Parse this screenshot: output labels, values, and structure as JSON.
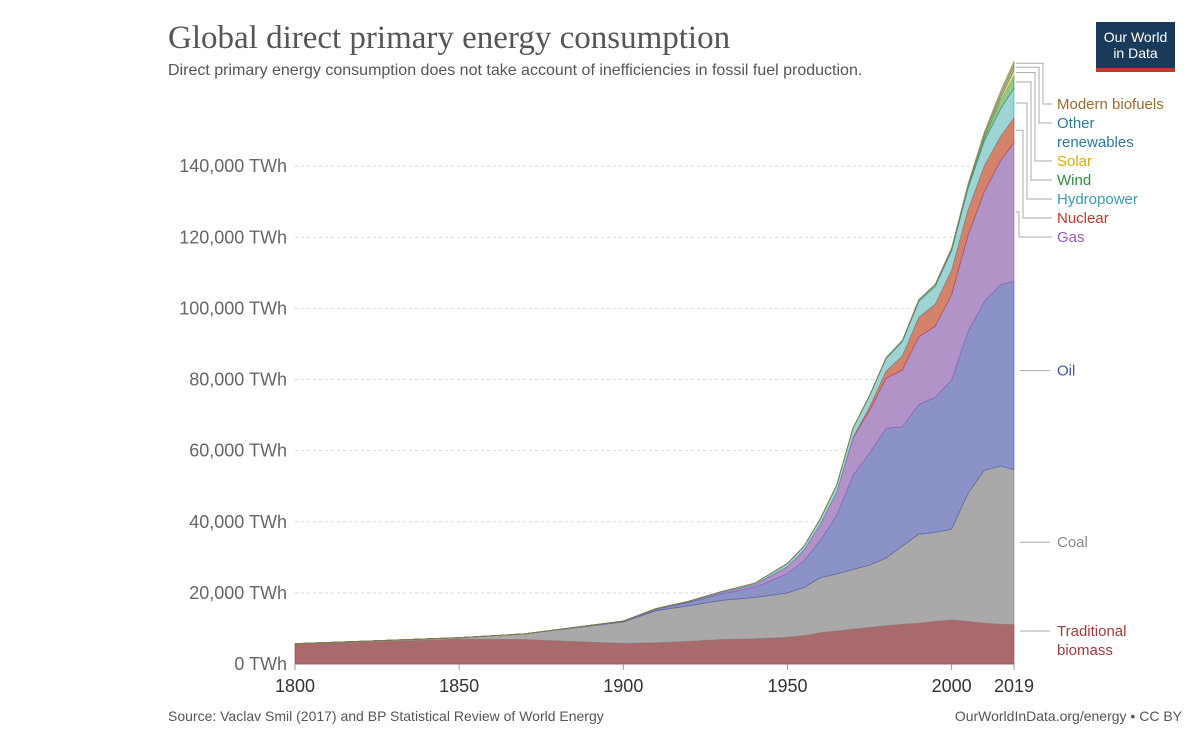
{
  "header": {
    "title": "Global direct primary energy consumption",
    "subtitle": "Direct primary energy consumption does not take account of inefficiencies in fossil fuel production.",
    "logo_line1": "Our World",
    "logo_line2": "in Data"
  },
  "footer": {
    "source": "Source: Vaclav Smil (2017) and BP Statistical Review of World Energy",
    "license": "OurWorldInData.org/energy • CC BY"
  },
  "chart_data": {
    "type": "area",
    "stacked": true,
    "x": [
      1800,
      1850,
      1870,
      1900,
      1910,
      1920,
      1930,
      1940,
      1950,
      1955,
      1960,
      1965,
      1970,
      1975,
      1980,
      1985,
      1990,
      1995,
      2000,
      2005,
      2010,
      2015,
      2019
    ],
    "ylim": [
      0,
      160000
    ],
    "yticks": [
      0,
      20000,
      40000,
      60000,
      80000,
      100000,
      120000,
      140000
    ],
    "ytick_labels": [
      "0 TWh",
      "20,000 TWh",
      "40,000 TWh",
      "60,000 TWh",
      "80,000 TWh",
      "100,000 TWh",
      "120,000 TWh",
      "140,000 TWh"
    ],
    "xticks": [
      1800,
      1850,
      1900,
      1950,
      2000,
      2019
    ],
    "xtick_labels": [
      "1800",
      "1850",
      "1900",
      "1950",
      "2000",
      "2019"
    ],
    "grid": true,
    "legend_position": "right",
    "series": [
      {
        "name": "Traditional biomass",
        "label": "Traditional\nbiomass",
        "color": "#9e3b3b",
        "fill": "#a86a6a",
        "values": [
          5600,
          7000,
          6900,
          5800,
          6000,
          6400,
          6900,
          7100,
          7500,
          8000,
          8800,
          9300,
          9800,
          10300,
          10800,
          11200,
          11500,
          12000,
          12400,
          12000,
          11500,
          11200,
          11100
        ]
      },
      {
        "name": "Coal",
        "color": "#888888",
        "fill": "#aaa8a8",
        "values": [
          100,
          400,
          1600,
          6000,
          9000,
          10000,
          11000,
          11600,
          12500,
          13500,
          15500,
          16000,
          16800,
          17500,
          19000,
          22000,
          25000,
          25000,
          25500,
          36000,
          43000,
          44500,
          43500
        ]
      },
      {
        "name": "Oil",
        "color": "#4356a8",
        "fill": "#8a92c8",
        "values": [
          0,
          0,
          0,
          200,
          400,
          900,
          1800,
          2900,
          5400,
          7500,
          10500,
          16500,
          26500,
          31500,
          36500,
          33500,
          36500,
          38000,
          42000,
          45500,
          47500,
          51000,
          53000
        ]
      },
      {
        "name": "Gas",
        "color": "#9b59b6",
        "fill": "#b293c8",
        "values": [
          0,
          0,
          0,
          50,
          100,
          200,
          400,
          700,
          2000,
          3000,
          4500,
          6500,
          10500,
          12000,
          14000,
          16000,
          19000,
          20000,
          24000,
          27000,
          31000,
          35000,
          39000
        ]
      },
      {
        "name": "Nuclear",
        "color": "#c0392b",
        "fill": "#d4826a",
        "values": [
          0,
          0,
          0,
          0,
          0,
          0,
          0,
          0,
          0,
          0,
          0,
          20,
          200,
          1000,
          2000,
          4000,
          5500,
          6200,
          6800,
          7200,
          7200,
          6800,
          7000
        ]
      },
      {
        "name": "Hydropower",
        "color": "#3a9ab0",
        "fill": "#9fd4d4",
        "values": [
          0,
          0,
          0,
          50,
          100,
          200,
          300,
          400,
          900,
          1100,
          1500,
          2000,
          2600,
          3100,
          3600,
          4000,
          4500,
          5000,
          5500,
          6000,
          7000,
          7800,
          8300
        ]
      },
      {
        "name": "Wind",
        "color": "#2e8b3e",
        "fill": "#8fc78f",
        "values": [
          0,
          0,
          0,
          0,
          0,
          0,
          0,
          0,
          0,
          0,
          0,
          0,
          0,
          0,
          0,
          0,
          10,
          20,
          80,
          250,
          850,
          2200,
          3500
        ]
      },
      {
        "name": "Solar",
        "color": "#d4b000",
        "fill": "#f0d98a",
        "values": [
          0,
          0,
          0,
          0,
          0,
          0,
          0,
          0,
          0,
          0,
          0,
          0,
          0,
          0,
          0,
          0,
          0,
          0,
          2,
          10,
          100,
          800,
          1800
        ]
      },
      {
        "name": "Other renewables",
        "label": "Other\nrenewables",
        "color": "#2a7a9a",
        "fill": "#9ec9c9",
        "values": [
          0,
          0,
          0,
          0,
          0,
          0,
          0,
          0,
          0,
          0,
          0,
          0,
          0,
          100,
          200,
          300,
          400,
          500,
          600,
          700,
          900,
          1100,
          1200
        ]
      },
      {
        "name": "Modern biofuels",
        "color": "#9a6c2e",
        "fill": "#d2c29a",
        "values": [
          0,
          0,
          0,
          0,
          0,
          0,
          0,
          0,
          0,
          0,
          0,
          0,
          0,
          0,
          0,
          0,
          50,
          100,
          150,
          300,
          700,
          900,
          1100
        ]
      }
    ]
  }
}
